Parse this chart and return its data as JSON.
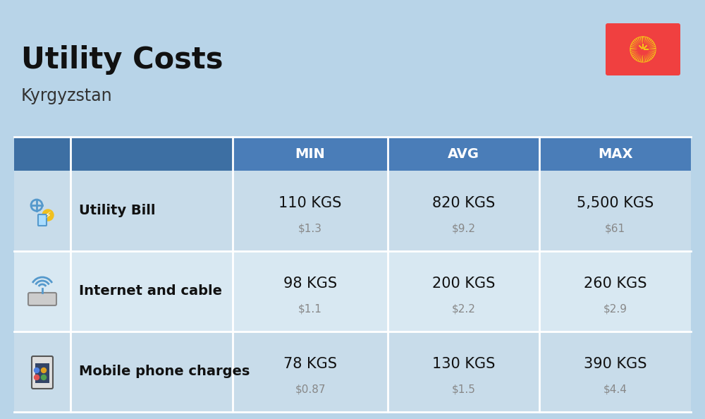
{
  "title": "Utility Costs",
  "subtitle": "Kyrgyzstan",
  "background_color": "#b8d4e8",
  "header_color": "#3d6fa3",
  "header_text_color": "#ffffff",
  "row_color_1": "#c8dcea",
  "row_color_2": "#d8e8f2",
  "col_header_color": "#4a7db8",
  "columns": [
    "MIN",
    "AVG",
    "MAX"
  ],
  "rows": [
    {
      "label": "Utility Bill",
      "min_kgs": "110 KGS",
      "min_usd": "$1.3",
      "avg_kgs": "820 KGS",
      "avg_usd": "$9.2",
      "max_kgs": "5,500 KGS",
      "max_usd": "$61"
    },
    {
      "label": "Internet and cable",
      "min_kgs": "98 KGS",
      "min_usd": "$1.1",
      "avg_kgs": "200 KGS",
      "avg_usd": "$2.2",
      "max_kgs": "260 KGS",
      "max_usd": "$2.9"
    },
    {
      "label": "Mobile phone charges",
      "min_kgs": "78 KGS",
      "min_usd": "$0.87",
      "avg_kgs": "130 KGS",
      "avg_usd": "$1.5",
      "max_kgs": "390 KGS",
      "max_usd": "$4.4"
    }
  ],
  "flag_red": "#f04040",
  "flag_yellow": "#f5c518",
  "kgs_fontsize": 15,
  "usd_fontsize": 11,
  "label_fontsize": 14,
  "header_fontsize": 14,
  "title_fontsize": 30,
  "subtitle_fontsize": 17
}
